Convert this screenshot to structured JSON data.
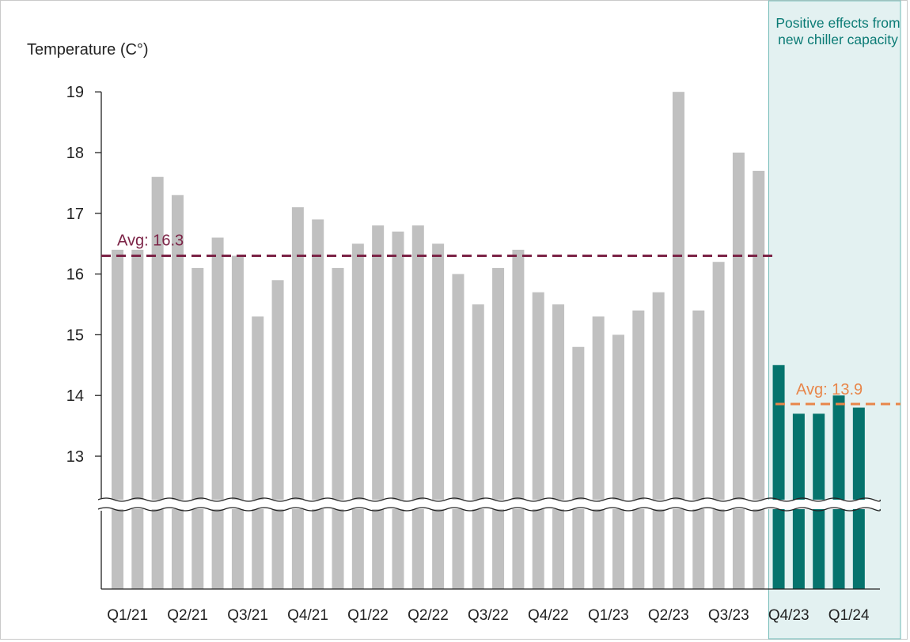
{
  "chart_data": {
    "type": "bar",
    "ylabel": "Temperature (C°)",
    "ylim": [
      12.3,
      19.2
    ],
    "y_break": true,
    "yticks": [
      13,
      14,
      15,
      16,
      17,
      18,
      19
    ],
    "x_tick_labels": [
      "Q1/21",
      "Q2/21",
      "Q3/21",
      "Q4/21",
      "Q1/22",
      "Q2/22",
      "Q3/22",
      "Q4/22",
      "Q1/23",
      "Q2/23",
      "Q3/23",
      "Q4/23",
      "Q1/24"
    ],
    "values": [
      16.4,
      16.4,
      17.6,
      17.3,
      16.1,
      16.6,
      16.3,
      15.3,
      15.9,
      17.1,
      16.9,
      16.1,
      16.5,
      16.8,
      16.7,
      16.8,
      16.5,
      16.0,
      15.5,
      16.1,
      16.4,
      15.7,
      15.5,
      14.8,
      15.3,
      15.0,
      15.4,
      15.7,
      19.0,
      15.4,
      16.2,
      18.0,
      17.7,
      14.5,
      13.7,
      13.7,
      14.0,
      13.8
    ],
    "highlight_start_index": 33,
    "highlight_label": "Positive effects from new chiller capacity",
    "reference_lines": [
      {
        "label": "Avg: 16.3",
        "value": 16.3,
        "color": "#7b2346"
      },
      {
        "label": "Avg: 13.9",
        "value": 13.86,
        "color": "#e8864a"
      }
    ],
    "colors": {
      "bar": "#c0c0c0",
      "highlight_bar": "#05736d",
      "highlight_bg": "#e3f1f1",
      "highlight_border": "#6db9b5"
    },
    "grid": false
  }
}
